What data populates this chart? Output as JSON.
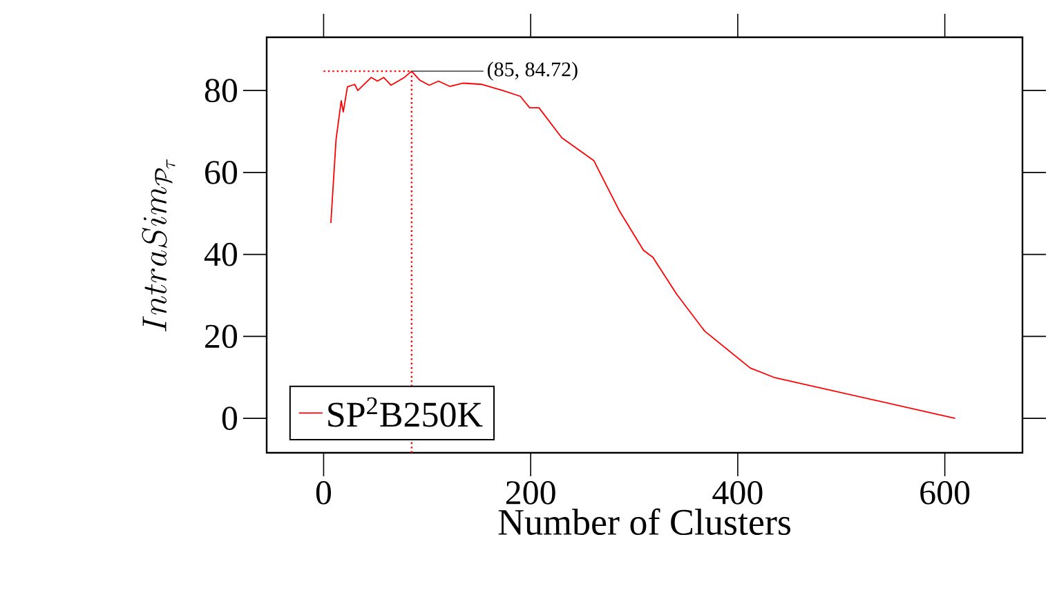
{
  "chart_data": {
    "type": "line",
    "xlabel": "Number of Clusters",
    "ylabel": "IntraSim_{\\mathcal{P}_\\tau}",
    "x": [
      7,
      12,
      17,
      19,
      23,
      30,
      33,
      46,
      52,
      58,
      65,
      78,
      85,
      93,
      102,
      111,
      122,
      135,
      153,
      173,
      190,
      199,
      208,
      230,
      261,
      270,
      286,
      309,
      318,
      341,
      368,
      412,
      435,
      610
    ],
    "series": [
      {
        "name": "SP$^{2}$B250K",
        "color": "#ff0000",
        "values": [
          47.7,
          68,
          77.5,
          74.8,
          80.9,
          81.5,
          80,
          83.2,
          82.3,
          83.2,
          81.3,
          83.2,
          84.72,
          82.5,
          81.3,
          82.3,
          81,
          81.8,
          81.5,
          80,
          78.6,
          75.8,
          75.8,
          68.5,
          62.9,
          58.4,
          50.5,
          41,
          39.3,
          30.3,
          21.3,
          12.3,
          10,
          0
        ]
      }
    ],
    "xlim": [
      -55,
      675
    ],
    "ylim": [
      -8.4,
      93
    ],
    "xticks": [
      0,
      200,
      400,
      600
    ],
    "yticks": [
      0,
      20,
      40,
      60,
      80
    ],
    "ref_lines": [
      {
        "axis": "x",
        "value": 85,
        "color": "#ff0000",
        "line_style": "dotted"
      },
      {
        "axis": "y",
        "value": 84.72,
        "color": "#ff0000",
        "line_style": "dotted"
      }
    ],
    "annotations": [
      {
        "text": "(85, 84.72)",
        "x": 85,
        "y": 84.72
      }
    ],
    "legend": "bottom left",
    "marker": "none",
    "line_style": "solid",
    "grid": false
  }
}
